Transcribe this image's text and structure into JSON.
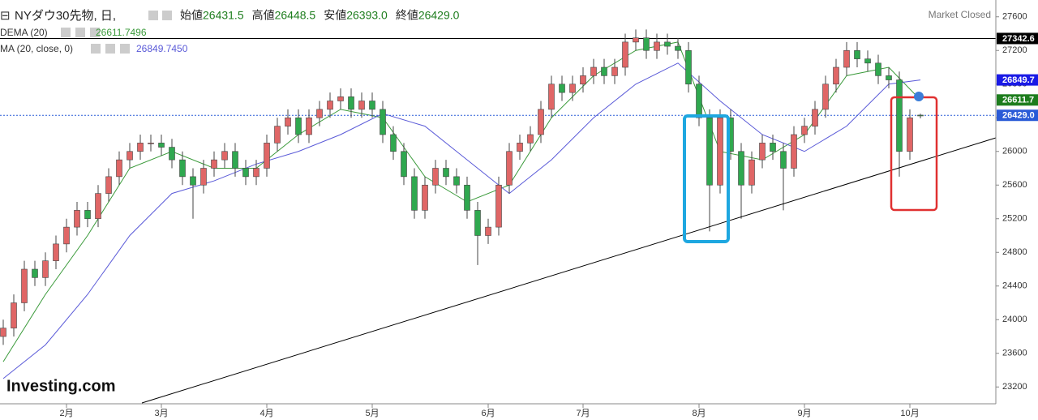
{
  "chart_data": {
    "type": "candlestick",
    "title": "NYダウ30先物, 日,",
    "ohlc_legend": [
      {
        "label": "始値",
        "value": "26431.5"
      },
      {
        "label": "高値",
        "value": "26448.5"
      },
      {
        "label": "安値",
        "value": "26393.0"
      },
      {
        "label": "終値",
        "value": "26429.0"
      }
    ],
    "status": "Market Closed",
    "brand": "Investing.com",
    "up_color": "#e06666",
    "down_color": "#2fa84f",
    "categories": [
      null,
      null,
      null,
      null,
      null,
      null,
      "2月",
      null,
      null,
      null,
      null,
      null,
      null,
      null,
      null,
      "3月",
      null,
      null,
      null,
      null,
      null,
      null,
      null,
      null,
      null,
      "4月",
      null,
      null,
      null,
      null,
      null,
      null,
      null,
      null,
      null,
      "5月",
      null,
      null,
      null,
      null,
      null,
      null,
      null,
      null,
      null,
      null,
      "6月",
      null,
      null,
      null,
      null,
      null,
      null,
      null,
      null,
      "7月",
      null,
      null,
      null,
      null,
      null,
      null,
      null,
      null,
      null,
      null,
      "8月",
      null,
      null,
      null,
      null,
      null,
      null,
      null,
      null,
      null,
      "9月",
      null,
      null,
      null,
      null,
      null,
      null,
      null,
      null,
      null,
      "10月",
      null
    ],
    "open": [
      23800,
      23900,
      24200,
      24600,
      24500,
      24700,
      24900,
      25100,
      25300,
      25200,
      25500,
      25700,
      25900,
      26000,
      26100,
      26100,
      26050,
      25900,
      25700,
      25600,
      25800,
      25900,
      26000,
      25800,
      25700,
      25800,
      26100,
      26300,
      26400,
      26200,
      26400,
      26500,
      26600,
      26650,
      26500,
      26600,
      26500,
      26200,
      26000,
      25700,
      25300,
      25600,
      25800,
      25700,
      25600,
      25300,
      25000,
      25100,
      25600,
      26000,
      26100,
      26200,
      26500,
      26800,
      26700,
      26800,
      26900,
      27000,
      26900,
      27000,
      27300,
      27350,
      27200,
      27300,
      27250,
      27200,
      26800,
      26400,
      25600,
      26400,
      26000,
      25600,
      25900,
      26100,
      26000,
      25800,
      26200,
      26300,
      26500,
      26800,
      27000,
      27200,
      27100,
      27050,
      26900,
      26850,
      26000,
      26431.5
    ],
    "high": [
      24000,
      24300,
      24700,
      24700,
      24800,
      25000,
      25200,
      25400,
      25400,
      25600,
      25800,
      26000,
      26100,
      26200,
      26200,
      26200,
      26150,
      26000,
      25800,
      25900,
      26000,
      26100,
      26100,
      25900,
      25900,
      26200,
      26400,
      26500,
      26500,
      26500,
      26600,
      26700,
      26750,
      26750,
      26700,
      26700,
      26600,
      26300,
      26100,
      25800,
      25700,
      25900,
      25900,
      25800,
      25700,
      25400,
      25200,
      25700,
      26100,
      26200,
      26300,
      26600,
      26900,
      26900,
      26900,
      27000,
      27100,
      27100,
      27100,
      27400,
      27450,
      27450,
      27400,
      27400,
      27350,
      27300,
      26900,
      26500,
      26500,
      26500,
      26100,
      26000,
      26200,
      26200,
      26100,
      26300,
      26400,
      26600,
      26900,
      27100,
      27300,
      27300,
      27200,
      27150,
      27000,
      26950,
      26500,
      26448.5
    ],
    "low": [
      23700,
      23800,
      24100,
      24400,
      24400,
      24600,
      24800,
      25000,
      25100,
      25100,
      25400,
      25600,
      25800,
      25900,
      26000,
      25950,
      25800,
      25600,
      25200,
      25500,
      25700,
      25800,
      25700,
      25600,
      25600,
      25700,
      26000,
      26200,
      26100,
      26100,
      26300,
      26400,
      26500,
      26400,
      26400,
      26400,
      26100,
      25900,
      25600,
      25200,
      25200,
      25500,
      25600,
      25500,
      25200,
      24650,
      24900,
      25000,
      25500,
      25900,
      26000,
      26100,
      26400,
      26600,
      26600,
      26700,
      26800,
      26800,
      26800,
      26900,
      27200,
      27100,
      27100,
      27150,
      27100,
      26700,
      26300,
      25050,
      25500,
      25900,
      25200,
      25500,
      25800,
      25900,
      25300,
      25700,
      26100,
      26200,
      26400,
      26700,
      26900,
      27000,
      26950,
      26800,
      26750,
      25700,
      25900,
      26393
    ],
    "close": [
      23900,
      24200,
      24600,
      24500,
      24700,
      24900,
      25100,
      25300,
      25200,
      25500,
      25700,
      25900,
      26000,
      26100,
      26100,
      26050,
      25900,
      25700,
      25600,
      25800,
      25900,
      26000,
      25800,
      25700,
      25800,
      26100,
      26300,
      26400,
      26200,
      26400,
      26500,
      26600,
      26650,
      26500,
      26600,
      26500,
      26200,
      26000,
      25700,
      25300,
      25600,
      25800,
      25700,
      25600,
      25300,
      25000,
      25100,
      25600,
      26000,
      26100,
      26200,
      26500,
      26800,
      26700,
      26800,
      26900,
      27000,
      26900,
      27000,
      27300,
      27350,
      27200,
      27300,
      27250,
      27200,
      26800,
      26400,
      25600,
      26400,
      26000,
      25600,
      25900,
      26100,
      26000,
      25800,
      26200,
      26300,
      26500,
      26800,
      27000,
      27200,
      27100,
      27050,
      26900,
      26850,
      26000,
      26400,
      26429
    ],
    "series": [
      {
        "name": "DEMA (20)",
        "value_label": "26611.7496",
        "color": "#3a9a3a",
        "x": [
          0,
          4,
          8,
          12,
          16,
          20,
          24,
          28,
          32,
          36,
          40,
          44,
          48,
          52,
          56,
          60,
          64,
          68,
          72,
          76,
          80,
          84,
          87
        ],
        "values": [
          23500,
          24300,
          25000,
          25800,
          26000,
          25800,
          25800,
          26200,
          26500,
          26400,
          25700,
          25400,
          25600,
          26400,
          26900,
          27200,
          27300,
          26000,
          25900,
          26200,
          26900,
          27000,
          26611.7496
        ]
      },
      {
        "name": "MA (20, close, 0)",
        "value_label": "26849.7450",
        "color": "#5a5ad8",
        "x": [
          0,
          4,
          8,
          12,
          16,
          20,
          24,
          28,
          32,
          36,
          40,
          44,
          48,
          52,
          56,
          60,
          64,
          68,
          72,
          76,
          80,
          84,
          87
        ],
        "values": [
          23300,
          23700,
          24300,
          25000,
          25500,
          25650,
          25850,
          26000,
          26200,
          26450,
          26300,
          25900,
          25500,
          25900,
          26400,
          26800,
          27050,
          26600,
          26200,
          26000,
          26300,
          26800,
          26849.745
        ]
      }
    ],
    "ylim": [
      23000,
      27800
    ],
    "yticks": [
      23200,
      23600,
      24000,
      24400,
      24800,
      25200,
      25600,
      26000,
      26400,
      26800,
      27200,
      27600
    ],
    "price_labels": [
      {
        "value": 27342.6,
        "label": "27342.6",
        "color": "#000000",
        "line": "solid"
      },
      {
        "value": 26849.7,
        "label": "26849.7",
        "color": "#1a1ae6",
        "line": "none"
      },
      {
        "value": 26611.7,
        "label": "26611.7",
        "color": "#1d7d1d",
        "line": "none"
      },
      {
        "value": 26429,
        "label": "26429.0",
        "color": "#2a5bd7",
        "line": "dotted"
      }
    ]
  }
}
